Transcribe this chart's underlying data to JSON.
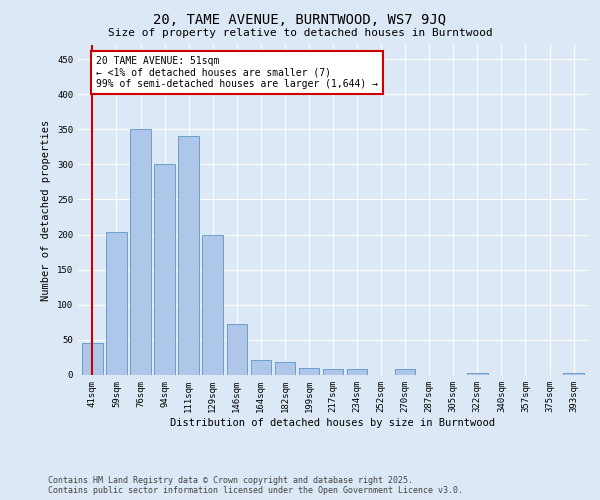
{
  "title_line1": "20, TAME AVENUE, BURNTWOOD, WS7 9JQ",
  "title_line2": "Size of property relative to detached houses in Burntwood",
  "xlabel": "Distribution of detached houses by size in Burntwood",
  "ylabel": "Number of detached properties",
  "categories": [
    "41sqm",
    "59sqm",
    "76sqm",
    "94sqm",
    "111sqm",
    "129sqm",
    "146sqm",
    "164sqm",
    "182sqm",
    "199sqm",
    "217sqm",
    "234sqm",
    "252sqm",
    "270sqm",
    "287sqm",
    "305sqm",
    "322sqm",
    "340sqm",
    "357sqm",
    "375sqm",
    "393sqm"
  ],
  "values": [
    45,
    204,
    350,
    300,
    340,
    200,
    72,
    22,
    19,
    10,
    8,
    9,
    0,
    9,
    0,
    0,
    3,
    0,
    0,
    0,
    3
  ],
  "bar_color": "#aec6e8",
  "bar_edge_color": "#5a96c8",
  "annotation_text": "20 TAME AVENUE: 51sqm\n← <1% of detached houses are smaller (7)\n99% of semi-detached houses are larger (1,644) →",
  "annotation_box_color": "#ffffff",
  "annotation_box_edge_color": "#cc0000",
  "vline_color": "#cc0000",
  "vline_x_data": 0,
  "ylim": [
    0,
    470
  ],
  "yticks": [
    0,
    50,
    100,
    150,
    200,
    250,
    300,
    350,
    400,
    450
  ],
  "footer_line1": "Contains HM Land Registry data © Crown copyright and database right 2025.",
  "footer_line2": "Contains public sector information licensed under the Open Government Licence v3.0.",
  "background_color": "#dce8f5",
  "plot_background_color": "#dce8f5",
  "title_fontsize": 10,
  "subtitle_fontsize": 8,
  "axis_label_fontsize": 7.5,
  "tick_fontsize": 6.5,
  "annotation_fontsize": 7,
  "footer_fontsize": 6
}
